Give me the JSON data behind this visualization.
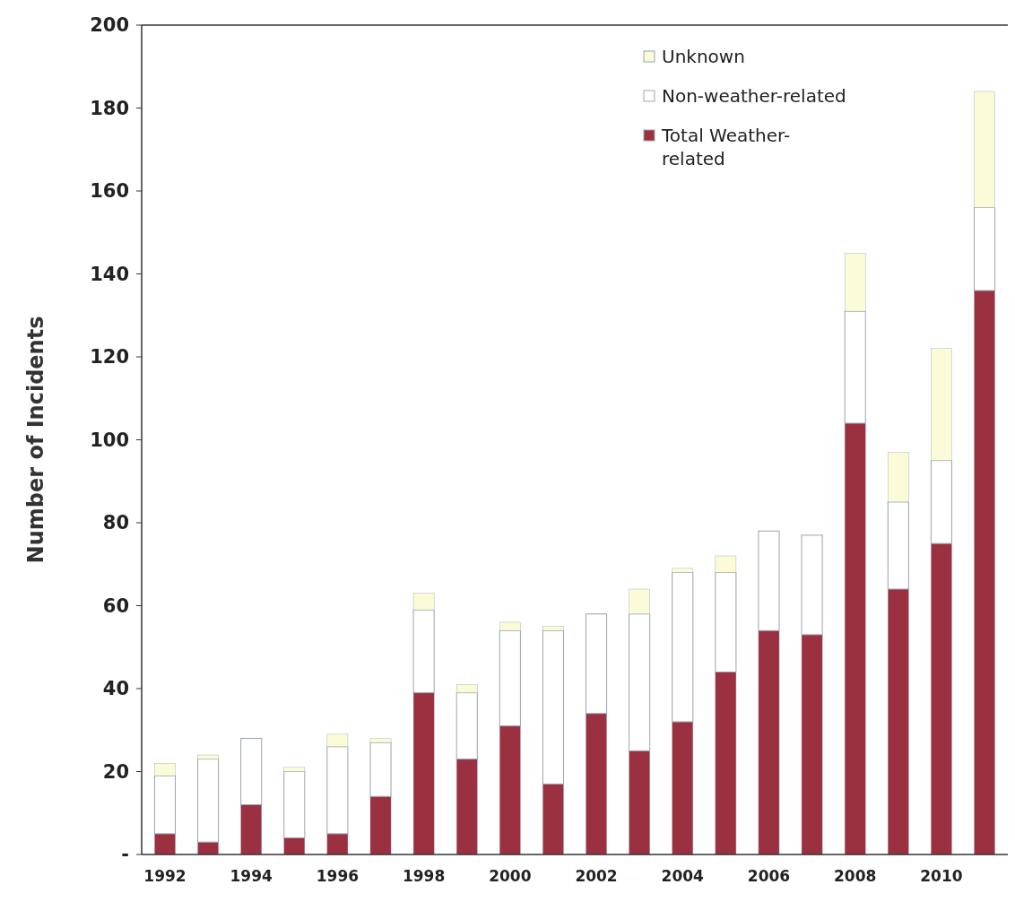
{
  "chart_data": {
    "type": "bar",
    "stacked": true,
    "ylabel": "Number of Incidents",
    "categories": [
      "1992",
      null,
      "1994",
      null,
      "1996",
      null,
      "1998",
      null,
      "2000",
      null,
      "2002",
      null,
      "2004",
      null,
      "2006",
      null,
      "2008",
      null,
      "2010",
      null
    ],
    "series": [
      {
        "name": "Total Weather-related",
        "color": "#9b3040",
        "values": [
          5,
          3,
          12,
          4,
          5,
          14,
          39,
          23,
          31,
          17,
          34,
          25,
          32,
          44,
          54,
          53,
          104,
          64,
          75,
          136
        ]
      },
      {
        "name": "Non-weather-related",
        "color": "#ffffff",
        "values": [
          14,
          20,
          16,
          16,
          21,
          13,
          20,
          16,
          23,
          37,
          24,
          33,
          36,
          24,
          24,
          24,
          27,
          21,
          20,
          20
        ]
      },
      {
        "name": "Unknown",
        "color": "#fbfbd8",
        "values": [
          3,
          1,
          0,
          1,
          3,
          1,
          4,
          2,
          2,
          1,
          0,
          6,
          1,
          4,
          0,
          0,
          14,
          12,
          27,
          28
        ]
      }
    ],
    "ylim": [
      0,
      200
    ],
    "yticks": [
      {
        "value": 0,
        "label": "-"
      },
      20,
      40,
      60,
      80,
      100,
      120,
      140,
      160,
      180,
      200
    ],
    "grid": false,
    "legend": "top right"
  }
}
